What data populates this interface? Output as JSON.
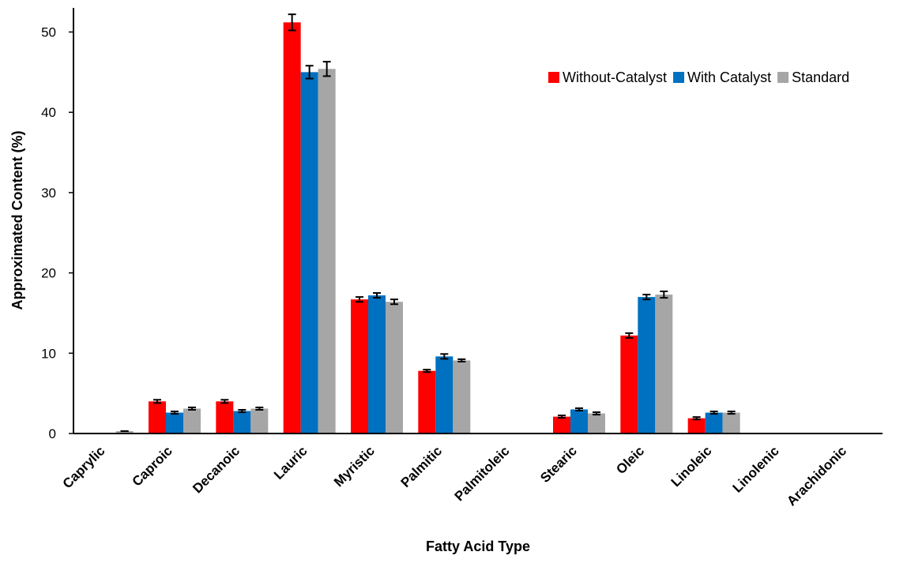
{
  "chart_data": {
    "type": "bar",
    "title": "",
    "xlabel": "Fatty Acid Type",
    "ylabel": "Approximated Content (%)",
    "ylim": [
      0,
      53
    ],
    "yticks": [
      0,
      10,
      20,
      30,
      40,
      50
    ],
    "grid": false,
    "legend_position": "top-right",
    "categories": [
      "Caprylic",
      "Caproic",
      "Decanoic",
      "Lauric",
      "Myristic",
      "Palmitic",
      "Palmitoleic",
      "Stearic",
      "Oleic",
      "Linoleic",
      "Linolenic",
      "Arachidonic"
    ],
    "series": [
      {
        "name": "Without-Catalyst",
        "color": "#ff0000",
        "values": [
          0,
          4.0,
          4.0,
          51.2,
          16.7,
          7.8,
          0,
          2.1,
          12.2,
          1.9,
          0,
          0
        ],
        "errors": [
          0,
          0.2,
          0.2,
          1.0,
          0.3,
          0.15,
          0,
          0.15,
          0.3,
          0.15,
          0,
          0
        ]
      },
      {
        "name": "With Catalyst",
        "color": "#0070c0",
        "values": [
          0,
          2.6,
          2.8,
          45.0,
          17.2,
          9.6,
          0,
          3.0,
          17.0,
          2.6,
          0,
          0
        ],
        "errors": [
          0,
          0.15,
          0.15,
          0.8,
          0.3,
          0.3,
          0,
          0.15,
          0.3,
          0.15,
          0,
          0
        ]
      },
      {
        "name": "Standard",
        "color": "#a6a6a6",
        "values": [
          0.3,
          3.1,
          3.1,
          45.4,
          16.4,
          9.1,
          0,
          2.5,
          17.3,
          2.6,
          0,
          0
        ],
        "errors": [
          0,
          0.15,
          0.15,
          0.9,
          0.3,
          0.15,
          0,
          0.15,
          0.4,
          0.15,
          0,
          0
        ]
      }
    ]
  }
}
